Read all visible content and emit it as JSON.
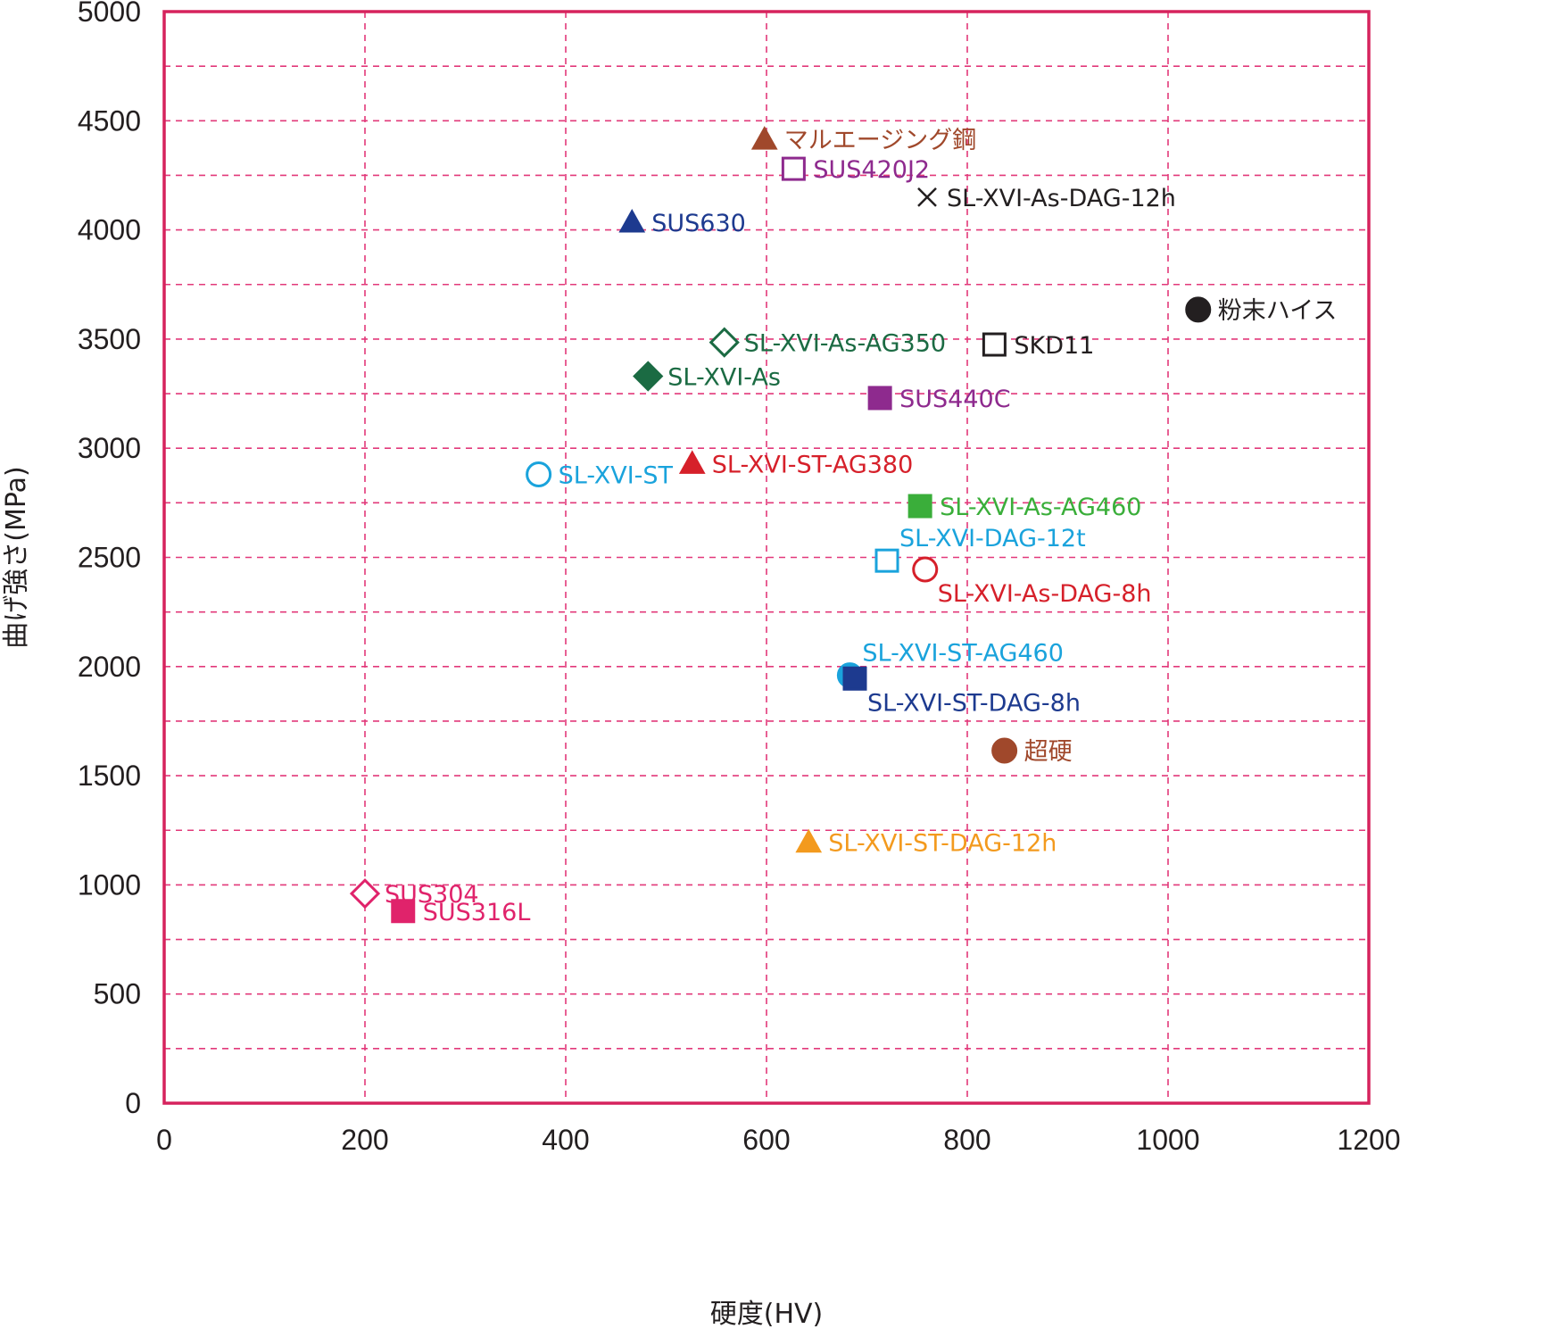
{
  "colors": {
    "frame": "#d6235d",
    "grid": "#e2397a",
    "text": "#231f20"
  },
  "chart_data": {
    "type": "scatter",
    "xlabel": "硬度(HV)",
    "ylabel": "曲げ強さ(MPa)",
    "xlim": [
      0,
      1200
    ],
    "ylim": [
      0,
      5000
    ],
    "xticks": [
      "0",
      "200",
      "400",
      "600",
      "800",
      "1000",
      "1200"
    ],
    "yticks": [
      "0",
      "500",
      "1000",
      "1500",
      "2000",
      "2500",
      "3000",
      "3500",
      "4000",
      "4500",
      "5000"
    ],
    "grid": true,
    "grid_style": "dashed",
    "points": [
      {
        "label": "マルエージング鋼",
        "x": 598,
        "y": 4415,
        "marker": "triangle",
        "filled": true,
        "color": "#a0482b",
        "label_side": "right"
      },
      {
        "label": "SUS420J2",
        "x": 627,
        "y": 4280,
        "marker": "square",
        "filled": false,
        "color": "#8e2a8e",
        "label_side": "right"
      },
      {
        "label": "SL-XVI-As-DAG-12h",
        "x": 760,
        "y": 4150,
        "marker": "x",
        "filled": false,
        "color": "#231f20",
        "label_side": "right"
      },
      {
        "label": "SUS630",
        "x": 466,
        "y": 4035,
        "marker": "triangle",
        "filled": true,
        "color": "#1d3a8f",
        "label_side": "right"
      },
      {
        "label": "粉末ハイス",
        "x": 1030,
        "y": 3635,
        "marker": "circle",
        "filled": true,
        "color": "#231f20",
        "label_side": "right"
      },
      {
        "label": "SL-XVI-As-AG350",
        "x": 558,
        "y": 3485,
        "marker": "diamond",
        "filled": false,
        "color": "#1b6b43",
        "label_side": "right"
      },
      {
        "label": "SKD11",
        "x": 827,
        "y": 3475,
        "marker": "square",
        "filled": false,
        "color": "#231f20",
        "label_side": "right"
      },
      {
        "label": "SL-XVI-As",
        "x": 482,
        "y": 3330,
        "marker": "diamond",
        "filled": true,
        "color": "#1b6b43",
        "label_side": "right"
      },
      {
        "label": "SUS440C",
        "x": 713,
        "y": 3230,
        "marker": "square",
        "filled": true,
        "color": "#8e2a8e",
        "label_side": "right"
      },
      {
        "label": "SL-XVI-ST-AG380",
        "x": 526,
        "y": 2930,
        "marker": "triangle",
        "filled": true,
        "color": "#d6202a",
        "label_side": "right"
      },
      {
        "label": "SL-XVI-ST",
        "x": 373,
        "y": 2880,
        "marker": "circle",
        "filled": false,
        "color": "#1aa3dc",
        "label_side": "right"
      },
      {
        "label": "SL-XVI-As-AG460",
        "x": 753,
        "y": 2735,
        "marker": "square",
        "filled": true,
        "color": "#3aae3a",
        "label_side": "right"
      },
      {
        "label": "SL-XVI-DAG-12t",
        "x": 720,
        "y": 2485,
        "marker": "square",
        "filled": false,
        "color": "#1aa3dc",
        "label_side": "above-right"
      },
      {
        "label": "SL-XVI-As-DAG-8h",
        "x": 758,
        "y": 2445,
        "marker": "circle",
        "filled": false,
        "color": "#d6202a",
        "label_side": "below-right"
      },
      {
        "label": "SL-XVI-ST-AG460",
        "x": 683,
        "y": 1960,
        "marker": "circle",
        "filled": true,
        "color": "#1aa3dc",
        "label_side": "above-right"
      },
      {
        "label": "SL-XVI-ST-DAG-8h",
        "x": 688,
        "y": 1945,
        "marker": "square",
        "filled": true,
        "color": "#1d3a8f",
        "label_side": "below-right"
      },
      {
        "label": "超硬",
        "x": 837,
        "y": 1615,
        "marker": "circle",
        "filled": true,
        "color": "#a0482b",
        "label_side": "right"
      },
      {
        "label": "SL-XVI-ST-DAG-12h",
        "x": 642,
        "y": 1195,
        "marker": "triangle",
        "filled": true,
        "color": "#f39a1e",
        "label_side": "right"
      },
      {
        "label": "SUS304",
        "x": 200,
        "y": 960,
        "marker": "diamond",
        "filled": false,
        "color": "#e0236b",
        "label_side": "right"
      },
      {
        "label": "SUS316L",
        "x": 238,
        "y": 880,
        "marker": "square",
        "filled": true,
        "color": "#e0236b",
        "label_side": "right"
      }
    ]
  }
}
